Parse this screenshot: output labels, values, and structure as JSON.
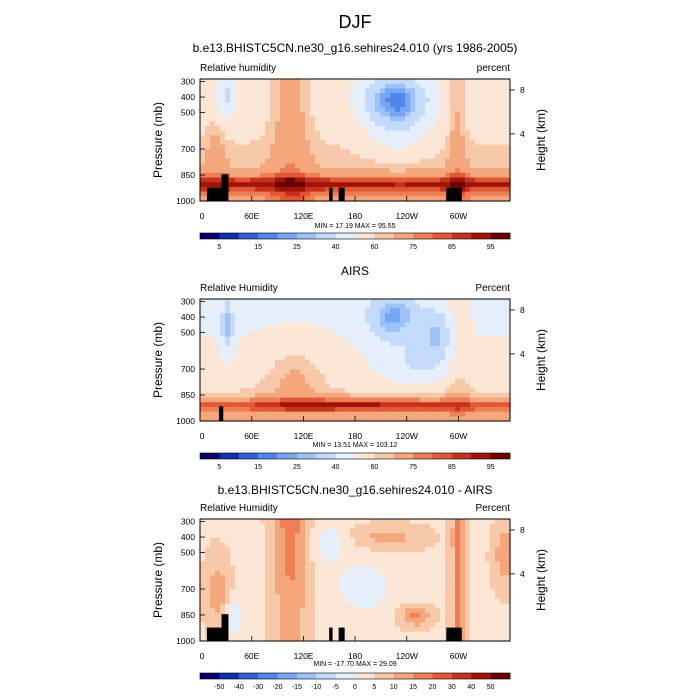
{
  "figure": {
    "title": "DJF"
  },
  "chart_data": [
    {
      "type": "heatmap",
      "title": "b.e13.BHISTC5CN.ne30_g16.sehires24.010 (yrs 1986-2005)",
      "left_label": "Relative humidity",
      "right_label": "percent",
      "ylabel": "Pressure (mb)",
      "y2label": "Height (km)",
      "x_ticks": [
        "0",
        "60E",
        "120E",
        "180",
        "120W",
        "60W"
      ],
      "y_ticks": [
        "300",
        "400",
        "500",
        "700",
        "850",
        "1000"
      ],
      "y2_ticks": [
        "8",
        "4"
      ],
      "stats": "MIN = 17.19  MAX = 95.55",
      "colorbar_labels": [
        "5",
        "15",
        "25",
        "40",
        "60",
        "75",
        "85",
        "95"
      ],
      "ylim": [
        1000,
        300
      ],
      "xlim": [
        0,
        360
      ]
    },
    {
      "type": "heatmap",
      "title": "AIRS",
      "left_label": "Relative Humidity",
      "right_label": "Percent",
      "ylabel": "Pressure (mb)",
      "y2label": "Height (km)",
      "x_ticks": [
        "0",
        "60E",
        "120E",
        "180",
        "120W",
        "60W"
      ],
      "y_ticks": [
        "300",
        "400",
        "500",
        "700",
        "850",
        "1000"
      ],
      "y2_ticks": [
        "8",
        "4"
      ],
      "stats": "MIN = 13.51  MAX = 103.12",
      "colorbar_labels": [
        "5",
        "15",
        "25",
        "40",
        "60",
        "75",
        "85",
        "95"
      ],
      "ylim": [
        1000,
        300
      ],
      "xlim": [
        0,
        360
      ]
    },
    {
      "type": "heatmap",
      "title": "b.e13.BHISTC5CN.ne30_g16.sehires24.010 - AIRS",
      "left_label": "Relative Humidity",
      "right_label": "Percent",
      "ylabel": "Pressure (mb)",
      "y2label": "Height (km)",
      "x_ticks": [
        "0",
        "60E",
        "120E",
        "180",
        "120W",
        "60W"
      ],
      "y_ticks": [
        "300",
        "400",
        "500",
        "700",
        "850",
        "1000"
      ],
      "y2_ticks": [
        "8",
        "4"
      ],
      "stats": "MIN = -17.70  MAX = 29.09",
      "colorbar_labels": [
        "-50",
        "-40",
        "-30",
        "-20",
        "-15",
        "-10",
        "-5",
        "0",
        "5",
        "10",
        "15",
        "20",
        "30",
        "40",
        "50"
      ],
      "ylim": [
        1000,
        300
      ],
      "xlim": [
        0,
        360
      ]
    }
  ],
  "palette": [
    "#08006e",
    "#0f2fa8",
    "#2f5fd0",
    "#4f86ea",
    "#77a6f4",
    "#9ec2f7",
    "#c4dafa",
    "#e5eefb",
    "#fbe6d6",
    "#f8c9a8",
    "#f4a67c",
    "#ee7f55",
    "#e25736",
    "#c8321c",
    "#9e1408",
    "#6b0000"
  ]
}
